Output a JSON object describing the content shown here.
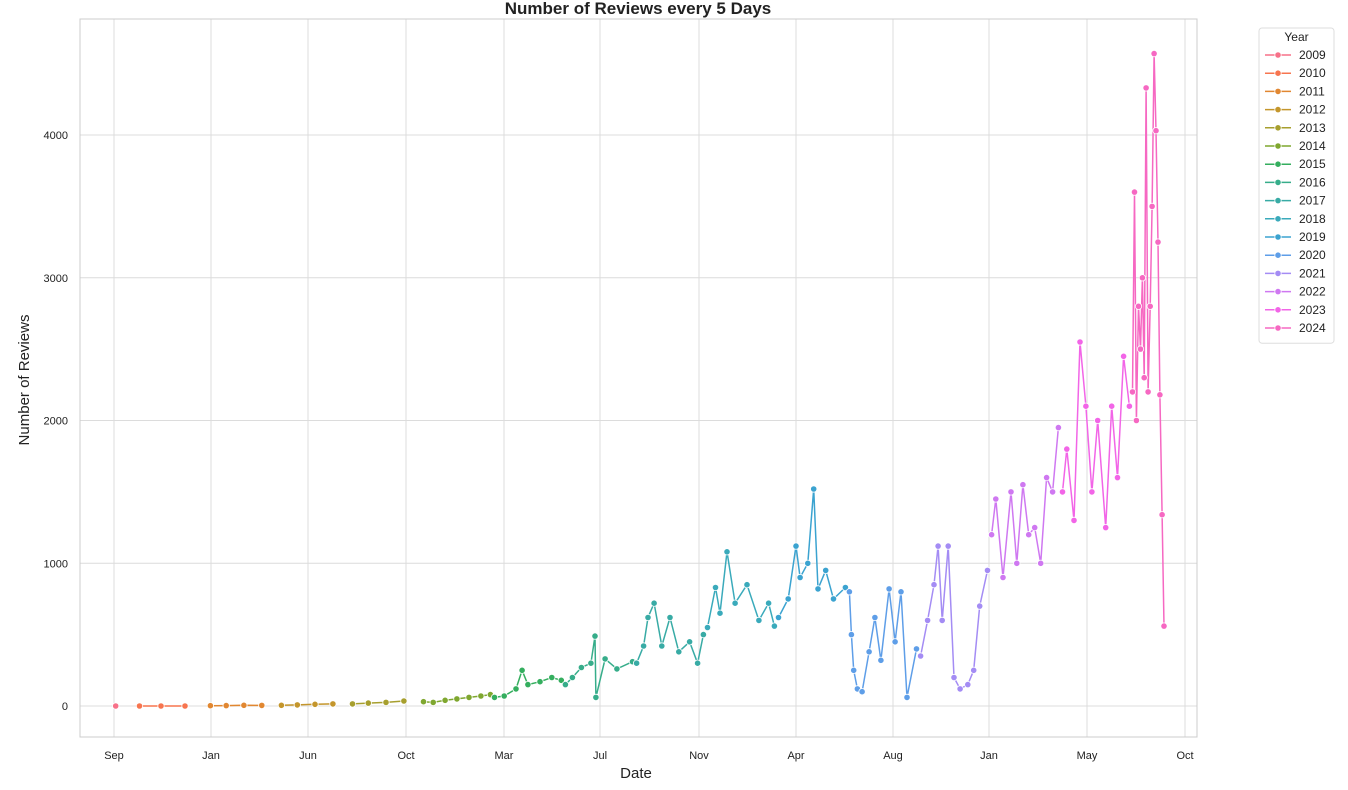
{
  "chart_data": {
    "type": "line",
    "title": "Number of Reviews every 5 Days",
    "xlabel": "Date",
    "ylabel": "Number of Reviews",
    "x_ticks": [
      "Sep",
      "Jan",
      "Jun",
      "Oct",
      "Mar",
      "Jul",
      "Nov",
      "Apr",
      "Aug",
      "Jan",
      "May",
      "Oct"
    ],
    "y_ticks": [
      0,
      1000,
      2000,
      3000,
      4000
    ],
    "ylim": [
      -220,
      4800
    ],
    "x_range": [
      "2009-08-01",
      "2024-10-01"
    ],
    "grid": true,
    "legend": {
      "title": "Year",
      "placement": "outside-top-right"
    },
    "series": [
      {
        "name": "2009",
        "color": "#f77189",
        "points": [
          [
            "2009-09-10",
            0
          ]
        ]
      },
      {
        "name": "2010",
        "color": "#f7754f",
        "points": [
          [
            "2010-01-10",
            0
          ],
          [
            "2010-05-01",
            0
          ],
          [
            "2010-09-01",
            0
          ]
        ]
      },
      {
        "name": "2011",
        "color": "#e18731",
        "points": [
          [
            "2011-01-10",
            2
          ],
          [
            "2011-04-01",
            3
          ],
          [
            "2011-07-01",
            5
          ],
          [
            "2011-10-01",
            4
          ]
        ]
      },
      {
        "name": "2012",
        "color": "#c4962c",
        "points": [
          [
            "2012-01-10",
            5
          ],
          [
            "2012-04-01",
            8
          ],
          [
            "2012-07-01",
            12
          ],
          [
            "2012-10-01",
            15
          ]
        ]
      },
      {
        "name": "2013",
        "color": "#a79f2e",
        "points": [
          [
            "2013-01-10",
            15
          ],
          [
            "2013-04-01",
            20
          ],
          [
            "2013-07-01",
            25
          ],
          [
            "2013-10-01",
            35
          ]
        ]
      },
      {
        "name": "2014",
        "color": "#7fa72f",
        "points": [
          [
            "2014-01-10",
            30
          ],
          [
            "2014-03-01",
            25
          ],
          [
            "2014-05-01",
            40
          ],
          [
            "2014-07-01",
            50
          ],
          [
            "2014-09-01",
            60
          ],
          [
            "2014-11-01",
            70
          ],
          [
            "2014-12-20",
            80
          ]
        ]
      },
      {
        "name": "2015",
        "color": "#34ae5e",
        "points": [
          [
            "2015-01-10",
            60
          ],
          [
            "2015-03-01",
            70
          ],
          [
            "2015-05-01",
            120
          ],
          [
            "2015-06-01",
            250
          ],
          [
            "2015-07-01",
            150
          ],
          [
            "2015-09-01",
            170
          ],
          [
            "2015-11-01",
            200
          ],
          [
            "2015-12-20",
            180
          ]
        ]
      },
      {
        "name": "2016",
        "color": "#36ad8a",
        "points": [
          [
            "2016-01-10",
            150
          ],
          [
            "2016-02-15",
            200
          ],
          [
            "2016-04-01",
            270
          ],
          [
            "2016-05-20",
            300
          ],
          [
            "2016-06-10",
            490
          ],
          [
            "2016-06-15",
            60
          ],
          [
            "2016-08-01",
            330
          ],
          [
            "2016-10-01",
            260
          ],
          [
            "2016-12-20",
            310
          ]
        ]
      },
      {
        "name": "2017",
        "color": "#38aba5",
        "points": [
          [
            "2017-01-10",
            300
          ],
          [
            "2017-02-15",
            420
          ],
          [
            "2017-03-10",
            620
          ],
          [
            "2017-04-10",
            720
          ],
          [
            "2017-05-20",
            420
          ],
          [
            "2017-07-01",
            620
          ],
          [
            "2017-08-15",
            380
          ],
          [
            "2017-10-10",
            450
          ],
          [
            "2017-11-20",
            300
          ],
          [
            "2017-12-20",
            500
          ]
        ]
      },
      {
        "name": "2018",
        "color": "#3aaabb",
        "points": [
          [
            "2018-01-10",
            550
          ],
          [
            "2018-02-20",
            830
          ],
          [
            "2018-03-15",
            650
          ],
          [
            "2018-04-20",
            1080
          ],
          [
            "2018-06-01",
            720
          ],
          [
            "2018-08-01",
            850
          ],
          [
            "2018-10-01",
            600
          ],
          [
            "2018-11-20",
            720
          ],
          [
            "2018-12-20",
            560
          ]
        ]
      },
      {
        "name": "2019",
        "color": "#3ba3d0",
        "points": [
          [
            "2019-01-10",
            620
          ],
          [
            "2019-03-01",
            750
          ],
          [
            "2019-04-10",
            1120
          ],
          [
            "2019-05-01",
            900
          ],
          [
            "2019-06-10",
            1000
          ],
          [
            "2019-07-10",
            1520
          ],
          [
            "2019-08-01",
            820
          ],
          [
            "2019-09-10",
            950
          ],
          [
            "2019-10-20",
            750
          ],
          [
            "2019-12-20",
            830
          ]
        ]
      },
      {
        "name": "2020",
        "color": "#5e9ee8",
        "points": [
          [
            "2020-01-10",
            800
          ],
          [
            "2020-01-20",
            500
          ],
          [
            "2020-02-01",
            250
          ],
          [
            "2020-02-20",
            120
          ],
          [
            "2020-03-15",
            100
          ],
          [
            "2020-04-20",
            380
          ],
          [
            "2020-05-20",
            620
          ],
          [
            "2020-06-20",
            320
          ],
          [
            "2020-08-01",
            820
          ],
          [
            "2020-09-01",
            450
          ],
          [
            "2020-10-01",
            800
          ],
          [
            "2020-11-01",
            60
          ],
          [
            "2020-12-20",
            400
          ]
        ]
      },
      {
        "name": "2021",
        "color": "#a48cf4",
        "points": [
          [
            "2021-01-10",
            350
          ],
          [
            "2021-02-15",
            600
          ],
          [
            "2021-03-20",
            850
          ],
          [
            "2021-04-10",
            1120
          ],
          [
            "2021-05-01",
            600
          ],
          [
            "2021-06-01",
            1120
          ],
          [
            "2021-07-01",
            200
          ],
          [
            "2021-08-01",
            120
          ],
          [
            "2021-09-10",
            150
          ],
          [
            "2021-10-10",
            250
          ],
          [
            "2021-11-10",
            700
          ],
          [
            "2021-12-20",
            950
          ]
        ]
      },
      {
        "name": "2022",
        "color": "#cf78f1",
        "points": [
          [
            "2022-01-10",
            1200
          ],
          [
            "2022-02-01",
            1450
          ],
          [
            "2022-03-10",
            900
          ],
          [
            "2022-04-20",
            1500
          ],
          [
            "2022-05-20",
            1000
          ],
          [
            "2022-06-20",
            1550
          ],
          [
            "2022-07-20",
            1200
          ],
          [
            "2022-08-20",
            1250
          ],
          [
            "2022-09-20",
            1000
          ],
          [
            "2022-10-20",
            1600
          ],
          [
            "2022-11-20",
            1500
          ],
          [
            "2022-12-20",
            1950
          ]
        ]
      },
      {
        "name": "2023",
        "color": "#f265e7",
        "points": [
          [
            "2023-01-10",
            1500
          ],
          [
            "2023-02-01",
            1800
          ],
          [
            "2023-03-10",
            1300
          ],
          [
            "2023-04-10",
            2550
          ],
          [
            "2023-05-10",
            2100
          ],
          [
            "2023-06-10",
            1500
          ],
          [
            "2023-07-10",
            2000
          ],
          [
            "2023-08-20",
            1250
          ],
          [
            "2023-09-20",
            2100
          ],
          [
            "2023-10-20",
            1600
          ],
          [
            "2023-11-20",
            2450
          ],
          [
            "2023-12-20",
            2100
          ]
        ]
      },
      {
        "name": "2024",
        "color": "#f668c2",
        "points": [
          [
            "2024-01-05",
            2200
          ],
          [
            "2024-01-15",
            3600
          ],
          [
            "2024-01-25",
            2000
          ],
          [
            "2024-02-05",
            2800
          ],
          [
            "2024-02-15",
            2500
          ],
          [
            "2024-02-25",
            3000
          ],
          [
            "2024-03-05",
            2300
          ],
          [
            "2024-03-15",
            4330
          ],
          [
            "2024-03-25",
            2200
          ],
          [
            "2024-04-05",
            2800
          ],
          [
            "2024-04-15",
            3500
          ],
          [
            "2024-04-25",
            4570
          ],
          [
            "2024-05-05",
            4030
          ],
          [
            "2024-05-15",
            3250
          ],
          [
            "2024-05-25",
            2180
          ],
          [
            "2024-06-05",
            1340
          ],
          [
            "2024-06-15",
            560
          ]
        ]
      }
    ]
  }
}
